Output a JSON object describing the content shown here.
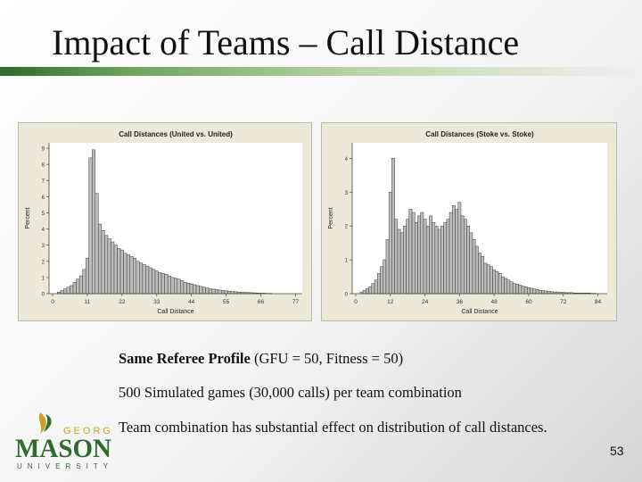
{
  "slide": {
    "title": "Impact of Teams – Call Distance",
    "line1_bold": "Same Referee Profile",
    "line1_rest": " (GFU = 50, Fitness = 50)",
    "line2": "500 Simulated games (30,000 calls) per team combination",
    "line3": "Team combination has substantial effect on distribution of call distances.",
    "page_number": "53",
    "logo": {
      "top": "GEORGE",
      "main": "MASON",
      "bottom": "UNIVERSITY"
    }
  },
  "colors": {
    "accent_green": "#2f6b2f",
    "logo_gold": "#c9a227",
    "bar_fill": "#bdbdbd",
    "bar_stroke": "#3a3a3a",
    "chart_bg": "#ffffff",
    "panel_bg": "#ece9d8"
  },
  "chart_data": [
    {
      "type": "bar",
      "title": "Call Distances (United vs. United)",
      "xlabel": "Call Distance",
      "ylabel": "Percent",
      "xlim": [
        0,
        78
      ],
      "ylim": [
        0,
        9
      ],
      "xticks": [
        0,
        11,
        22,
        33,
        44,
        55,
        66,
        77
      ],
      "yticks": [
        0,
        1,
        2,
        3,
        4,
        5,
        6,
        7,
        8,
        9
      ],
      "bin_start": 2,
      "bin_width": 1,
      "values": [
        0.1,
        0.2,
        0.3,
        0.4,
        0.5,
        0.7,
        0.9,
        1.1,
        1.5,
        2.2,
        8.4,
        8.9,
        6.2,
        4.3,
        3.9,
        3.6,
        3.4,
        3.2,
        3.0,
        2.8,
        2.7,
        2.5,
        2.4,
        2.3,
        2.2,
        2.0,
        1.9,
        1.8,
        1.7,
        1.6,
        1.5,
        1.4,
        1.3,
        1.25,
        1.2,
        1.1,
        1.0,
        0.95,
        0.9,
        0.8,
        0.7,
        0.65,
        0.6,
        0.55,
        0.5,
        0.45,
        0.4,
        0.35,
        0.3,
        0.28,
        0.25,
        0.22,
        0.2,
        0.18,
        0.15,
        0.13,
        0.12,
        0.1,
        0.09,
        0.08,
        0.07,
        0.06,
        0.05,
        0.04,
        0.03,
        0.03,
        0.02,
        0.02
      ]
    },
    {
      "type": "bar",
      "title": "Call Distances (Stoke vs. Stoke)",
      "xlabel": "Call Distance",
      "ylabel": "Percent",
      "xlim": [
        0,
        86
      ],
      "ylim": [
        0,
        4.3
      ],
      "xticks": [
        0,
        12,
        24,
        36,
        48,
        60,
        72,
        84
      ],
      "yticks": [
        0,
        1,
        2,
        3,
        4
      ],
      "bin_start": 2,
      "bin_width": 1,
      "values": [
        0.05,
        0.1,
        0.15,
        0.2,
        0.3,
        0.4,
        0.6,
        0.8,
        1.0,
        1.6,
        3.0,
        4.0,
        2.2,
        1.9,
        1.8,
        2.0,
        2.2,
        2.5,
        2.4,
        2.1,
        2.3,
        2.4,
        2.2,
        2.0,
        2.3,
        2.1,
        2.0,
        1.9,
        2.0,
        2.1,
        2.2,
        2.4,
        2.6,
        2.5,
        2.7,
        2.3,
        2.2,
        2.0,
        1.8,
        1.6,
        1.4,
        1.2,
        1.1,
        0.9,
        0.85,
        0.8,
        0.7,
        0.65,
        0.6,
        0.5,
        0.45,
        0.4,
        0.35,
        0.3,
        0.28,
        0.25,
        0.22,
        0.2,
        0.18,
        0.16,
        0.14,
        0.12,
        0.1,
        0.09,
        0.08,
        0.07,
        0.06,
        0.05,
        0.05,
        0.04,
        0.04,
        0.03,
        0.03,
        0.03,
        0.02,
        0.02,
        0.02,
        0.02,
        0.02,
        0.02,
        0.01,
        0.01
      ]
    }
  ]
}
